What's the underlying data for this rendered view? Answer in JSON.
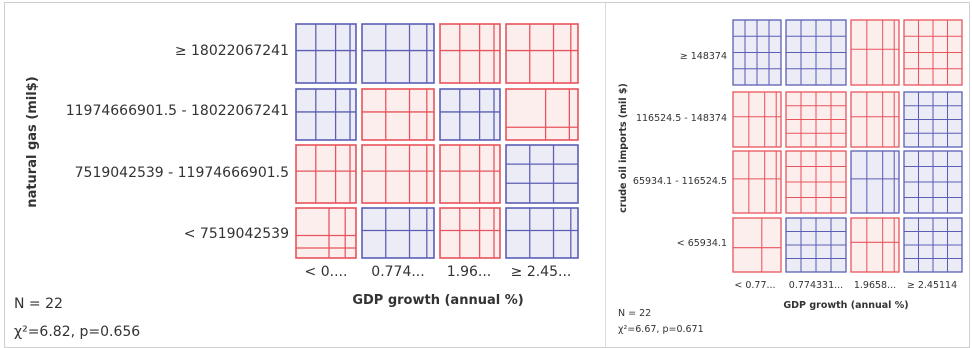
{
  "chart_data": [
    {
      "type": "heatmap",
      "subtype": "mosaic",
      "xlabel": "GDP growth (annual %)",
      "ylabel": "natural gas (mil$)",
      "x_categories": [
        "< 0....",
        "0.774...",
        "1.96...",
        "≥ 2.45..."
      ],
      "y_categories": [
        "≥ 18022067241",
        "11974666901.5 - 18022067241",
        "7519042539 - 11974666901.5",
        "< 7519042539"
      ],
      "cells": [
        [
          "blue",
          "blue",
          "red",
          "red"
        ],
        [
          "blue",
          "red",
          "blue",
          "red"
        ],
        [
          "red",
          "red",
          "red",
          "blue"
        ],
        [
          "red",
          "blue",
          "red",
          "blue"
        ]
      ],
      "n_label": "N = 22",
      "stat_label": "χ²=6.82, p=0.656",
      "n": 22,
      "chi2": 6.82,
      "p": 0.656
    },
    {
      "type": "heatmap",
      "subtype": "mosaic",
      "xlabel": "GDP growth (annual %)",
      "ylabel": "crude oil imports (mil $)",
      "x_categories": [
        "< 0.77...",
        "0.774331...",
        "1.9658...",
        "≥ 2.45114"
      ],
      "y_categories": [
        "≥ 148374",
        "116524.5 - 148374",
        "65934.1 - 116524.5",
        "< 65934.1"
      ],
      "cells": [
        [
          "blue",
          "blue",
          "red",
          "red"
        ],
        [
          "red",
          "red",
          "red",
          "blue"
        ],
        [
          "red",
          "red",
          "blue",
          "blue"
        ],
        [
          "red",
          "blue",
          "red",
          "blue"
        ]
      ],
      "n_label": "N = 22",
      "stat_label": "χ²=6.67, p=0.671",
      "n": 22,
      "chi2": 6.67,
      "p": 0.671
    }
  ],
  "colors": {
    "red": "#e8545c",
    "blue": "#5d5fb5",
    "red_fill": "#fdeeee",
    "blue_fill": "#ececf7"
  }
}
